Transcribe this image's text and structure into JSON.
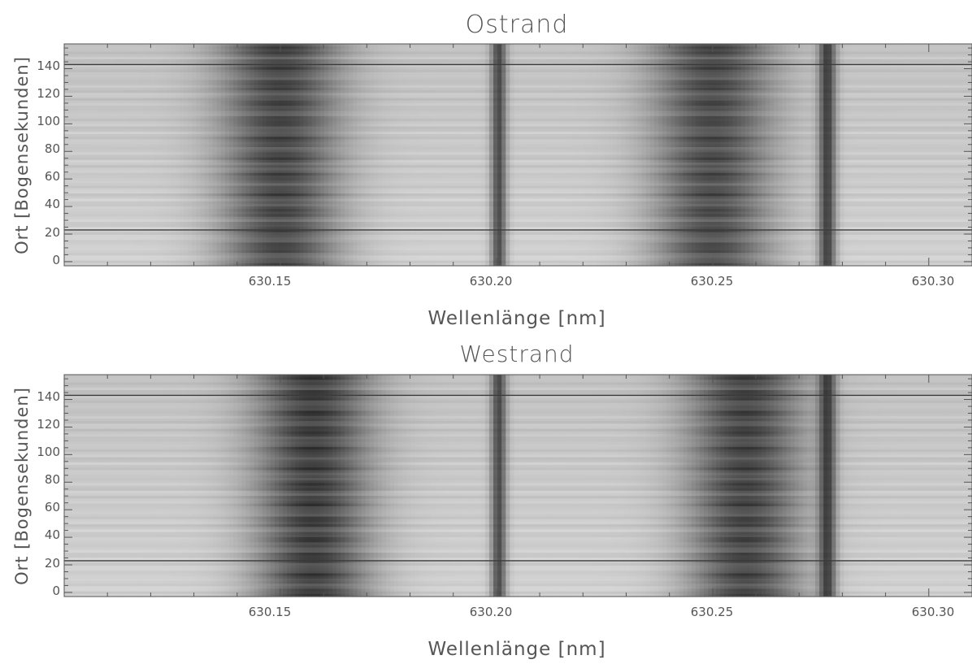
{
  "chart_data": [
    {
      "type": "heatmap",
      "title": "Ostrand",
      "xlabel": "Wellenlänge [nm]",
      "ylabel": "Ort [Bogensekunden]",
      "xlim": [
        630.1,
        630.31
      ],
      "ylim": [
        -3,
        158
      ],
      "xticks": [
        630.15,
        630.2,
        630.25,
        630.3
      ],
      "xtick_labels": [
        "630.15",
        "630.20",
        "630.25",
        "630.30"
      ],
      "yticks": [
        0,
        20,
        40,
        60,
        80,
        100,
        120,
        140
      ],
      "ytick_labels": [
        "0",
        "20",
        "40",
        "60",
        "80",
        "100",
        "120",
        "140"
      ],
      "colormap": "grayscale",
      "absorption_lines": [
        {
          "center_nm": 630.15,
          "width_nm": 0.014,
          "depth": 0.62,
          "type": "broad"
        },
        {
          "center_nm": 630.2005,
          "width_nm": 0.0018,
          "depth": 0.62,
          "type": "narrow"
        },
        {
          "center_nm": 630.25,
          "width_nm": 0.014,
          "depth": 0.6,
          "type": "broad"
        },
        {
          "center_nm": 630.2765,
          "width_nm": 0.002,
          "depth": 0.68,
          "type": "narrow"
        }
      ],
      "horizontal_lines_y": [
        143,
        23
      ]
    },
    {
      "type": "heatmap",
      "title": "Westrand",
      "xlabel": "Wellenlänge [nm]",
      "ylabel": "Ort [Bogensekunden]",
      "xlim": [
        630.1,
        630.31
      ],
      "ylim": [
        -3,
        158
      ],
      "xticks": [
        630.15,
        630.2,
        630.25,
        630.3
      ],
      "xtick_labels": [
        "630.15",
        "630.20",
        "630.25",
        "630.30"
      ],
      "yticks": [
        0,
        20,
        40,
        60,
        80,
        100,
        120,
        140
      ],
      "ytick_labels": [
        "0",
        "20",
        "40",
        "60",
        "80",
        "100",
        "120",
        "140"
      ],
      "colormap": "grayscale",
      "absorption_lines": [
        {
          "center_nm": 630.1575,
          "width_nm": 0.0135,
          "depth": 0.66,
          "type": "broad"
        },
        {
          "center_nm": 630.2005,
          "width_nm": 0.0018,
          "depth": 0.62,
          "type": "narrow"
        },
        {
          "center_nm": 630.2575,
          "width_nm": 0.0135,
          "depth": 0.63,
          "type": "broad"
        },
        {
          "center_nm": 630.2765,
          "width_nm": 0.002,
          "depth": 0.68,
          "type": "narrow"
        }
      ],
      "horizontal_lines_y": [
        143,
        23
      ]
    }
  ]
}
